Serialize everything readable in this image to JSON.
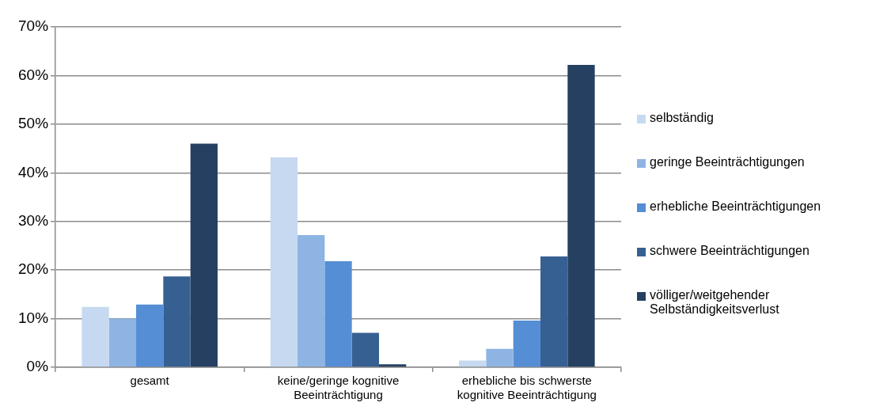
{
  "chart_data": {
    "type": "bar",
    "categories": [
      "gesamt",
      "keine/geringe kognitive Beeinträchtigung",
      "erhebliche bis schwerste kognitive Beeinträchtigung"
    ],
    "series": [
      {
        "name": "selbständig",
        "color": "#c6d9f1",
        "values": [
          12.4,
          43.2,
          1.4
        ]
      },
      {
        "name": "geringe Beeinträchtigungen",
        "color": "#8eb4e3",
        "values": [
          10.0,
          27.2,
          3.8
        ]
      },
      {
        "name": "erhebliche Beeinträchtigungen",
        "color": "#558ed5",
        "values": [
          12.9,
          21.8,
          9.6
        ]
      },
      {
        "name": "schwere Beeinträchtigungen",
        "color": "#376092",
        "values": [
          18.7,
          7.1,
          22.8
        ]
      },
      {
        "name": "völliger/weitgehender Selbständigkeitsverlust",
        "color": "#254061",
        "values": [
          46.0,
          0.6,
          62.2
        ]
      }
    ],
    "ylim": [
      0,
      70
    ],
    "yticks": [
      {
        "value": 0,
        "label": "0%"
      },
      {
        "value": 10,
        "label": "10%"
      },
      {
        "value": 20,
        "label": "20%"
      },
      {
        "value": 30,
        "label": "30%"
      },
      {
        "value": 40,
        "label": "40%"
      },
      {
        "value": 50,
        "label": "50%"
      },
      {
        "value": 60,
        "label": "60%"
      },
      {
        "value": 70,
        "label": "70%"
      }
    ],
    "grid": "y",
    "legend": "right"
  }
}
